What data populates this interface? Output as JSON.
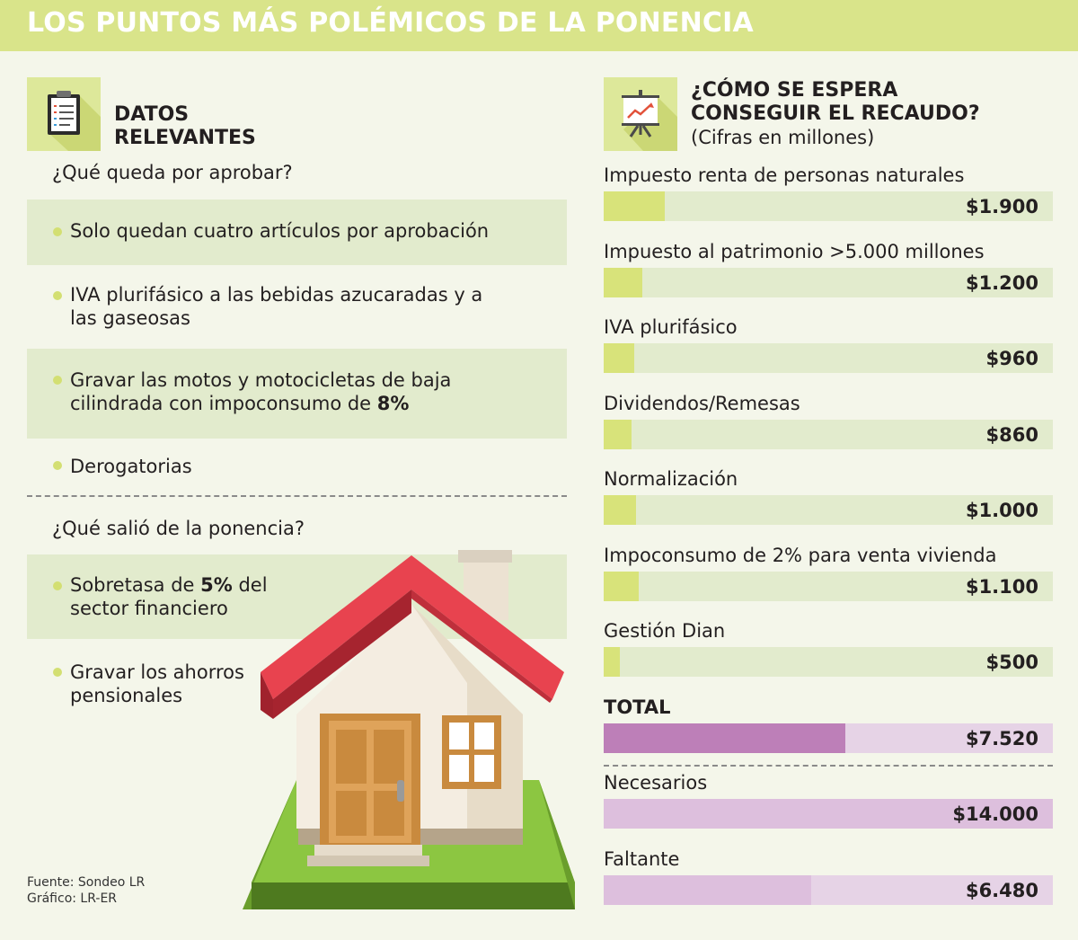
{
  "header": {
    "title": "LOS PUNTOS MÁS POLÉMICOS DE LA PONENCIA"
  },
  "left": {
    "heading_line1": "DATOS",
    "heading_line2": "RELEVANTES",
    "question1": "¿Qué queda por aprobar?",
    "items1": [
      {
        "text": "Solo quedan cuatro artículos por aprobación"
      },
      {
        "line1": "IVA plurifásico a las bebidas azucaradas y a",
        "line2": "las gaseosas"
      },
      {
        "line1": "Gravar las motos y motocicletas de baja",
        "line2_pre": "cilindrada con impoconsumo de ",
        "line2_bold": "8%"
      },
      {
        "text": "Derogatorias"
      }
    ],
    "question2": "¿Qué salió de la ponencia?",
    "items2": [
      {
        "line1_pre": "Sobretasa de ",
        "line1_bold": "5%",
        "line1_post": " del",
        "line2": "sector financiero"
      },
      {
        "line1": "Gravar los ahorros",
        "line2": "pensionales"
      }
    ],
    "source": "Fuente: Sondeo LR",
    "credit": "Gráfico: LR-ER",
    "icons": {
      "clipboard": "clipboard-icon",
      "house": "house-illustration"
    }
  },
  "right": {
    "heading_line1": "¿CÓMO SE ESPERA",
    "heading_line2": "CONSEGUIR EL RECAUDO?",
    "subheading": "(Cifras en millones)",
    "icon": "presentation-chart-icon"
  },
  "chart_data": {
    "type": "bar",
    "orientation": "horizontal",
    "unit": "millones",
    "scale_max": 14000,
    "categories": [
      "Impuesto renta de personas naturales",
      "Impuesto al patrimonio >5.000 millones",
      "IVA plurifásico",
      "Dividendos/Remesas",
      "Normalización",
      "Impoconsumo de 2% para venta vivienda",
      "Gestión Dian",
      "TOTAL",
      "Necesarios",
      "Faltante"
    ],
    "values": [
      1900,
      1200,
      960,
      860,
      1000,
      1100,
      500,
      7520,
      14000,
      6480
    ],
    "value_labels": [
      "$1.900",
      "$1.200",
      "$960",
      "$860",
      "$1.000",
      "$1.100",
      "$500",
      "$7.520",
      "$14.000",
      "$6.480"
    ],
    "colors": {
      "item_fill": "#d8e37a",
      "item_track": "#e2ebcd",
      "total_fill": "#bd7fb8",
      "needed_fill": "#ddbfdd",
      "pink_track": "#e6d3e6"
    }
  }
}
